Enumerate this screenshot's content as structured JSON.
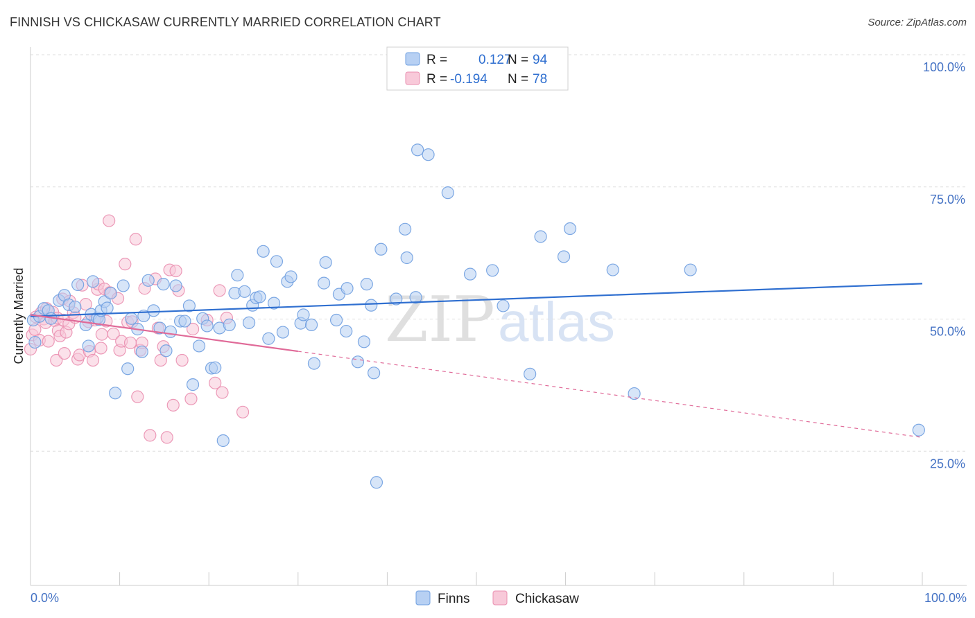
{
  "title": "FINNISH VS CHICKASAW CURRENTLY MARRIED CORRELATION CHART",
  "source": "Source: ZipAtlas.com",
  "watermark": {
    "zip": "ZIP",
    "atlas": "atlas"
  },
  "colors": {
    "finns": "#6f9fe0",
    "finns_fill": "#b7d0f3",
    "finns_line": "#2f6fd0",
    "chickasaw": "#ea8fb0",
    "chickasaw_fill": "#f8c9d9",
    "chickasaw_line": "#e06a98"
  },
  "legend": {
    "finns": {
      "r_label": "R =",
      "r_value": "0.127",
      "n_label": "N =",
      "n_value": "94"
    },
    "chickasaw": {
      "r_label": "R =",
      "r_value": "-0.194",
      "n_label": "N =",
      "n_value": "78"
    }
  },
  "chart_data": {
    "type": "scatter",
    "title": "FINNISH VS CHICKASAW CURRENTLY MARRIED CORRELATION CHART",
    "xlabel": "",
    "ylabel": "Currently Married",
    "xlim": [
      0,
      100
    ],
    "ylim": [
      0,
      100
    ],
    "x_tick_labels": {
      "left": "0.0%",
      "right": "100.0%"
    },
    "y_ticks": [
      {
        "value": 100,
        "label": "100.0%"
      },
      {
        "value": 75,
        "label": "75.0%"
      },
      {
        "value": 50,
        "label": "50.0%"
      },
      {
        "value": 25,
        "label": "25.0%"
      }
    ],
    "series": [
      {
        "name": "Finns",
        "r": 0.127,
        "n": 94,
        "trend": {
          "x": [
            0,
            100
          ],
          "y": [
            50.5,
            56.7
          ]
        },
        "points": [
          [
            0.3,
            49.8
          ],
          [
            0.5,
            45.6
          ],
          [
            1.0,
            50.5
          ],
          [
            1.5,
            52.0
          ],
          [
            2.0,
            51.6
          ],
          [
            2.3,
            50.1
          ],
          [
            3.2,
            53.5
          ],
          [
            3.8,
            54.5
          ],
          [
            4.3,
            52.7
          ],
          [
            5.0,
            52.3
          ],
          [
            5.3,
            56.5
          ],
          [
            6.2,
            48.9
          ],
          [
            6.5,
            44.9
          ],
          [
            6.8,
            50.9
          ],
          [
            7.0,
            57.1
          ],
          [
            7.5,
            50.2
          ],
          [
            7.7,
            49.9
          ],
          [
            7.9,
            51.6
          ],
          [
            8.3,
            53.3
          ],
          [
            8.6,
            52.1
          ],
          [
            9.0,
            54.9
          ],
          [
            9.5,
            36.0
          ],
          [
            10.4,
            56.3
          ],
          [
            10.9,
            40.6
          ],
          [
            11.3,
            50.1
          ],
          [
            12.0,
            48.1
          ],
          [
            12.5,
            43.8
          ],
          [
            12.7,
            50.6
          ],
          [
            13.2,
            57.3
          ],
          [
            13.8,
            51.6
          ],
          [
            14.5,
            48.3
          ],
          [
            14.9,
            56.6
          ],
          [
            15.2,
            44.0
          ],
          [
            15.7,
            47.6
          ],
          [
            16.3,
            56.3
          ],
          [
            16.8,
            49.6
          ],
          [
            17.3,
            49.6
          ],
          [
            17.8,
            52.5
          ],
          [
            18.2,
            37.6
          ],
          [
            18.9,
            44.9
          ],
          [
            19.3,
            50.1
          ],
          [
            19.8,
            48.7
          ],
          [
            20.3,
            40.7
          ],
          [
            20.7,
            40.8
          ],
          [
            21.2,
            48.3
          ],
          [
            21.6,
            27.0
          ],
          [
            22.3,
            48.9
          ],
          [
            22.9,
            54.9
          ],
          [
            23.2,
            58.3
          ],
          [
            24.0,
            55.2
          ],
          [
            24.5,
            49.3
          ],
          [
            24.9,
            52.6
          ],
          [
            25.3,
            54.0
          ],
          [
            25.7,
            54.2
          ],
          [
            26.1,
            62.8
          ],
          [
            26.7,
            46.3
          ],
          [
            27.3,
            53.0
          ],
          [
            27.6,
            60.9
          ],
          [
            28.3,
            47.5
          ],
          [
            28.8,
            57.1
          ],
          [
            29.2,
            58.0
          ],
          [
            30.3,
            49.2
          ],
          [
            30.6,
            50.8
          ],
          [
            31.5,
            48.9
          ],
          [
            31.8,
            41.6
          ],
          [
            32.9,
            56.8
          ],
          [
            33.1,
            60.7
          ],
          [
            34.3,
            49.8
          ],
          [
            34.6,
            54.7
          ],
          [
            35.4,
            47.7
          ],
          [
            35.5,
            55.8
          ],
          [
            36.7,
            41.9
          ],
          [
            37.4,
            45.7
          ],
          [
            37.7,
            56.6
          ],
          [
            38.2,
            52.6
          ],
          [
            38.5,
            39.8
          ],
          [
            38.8,
            19.1
          ],
          [
            39.3,
            63.2
          ],
          [
            41.0,
            53.8
          ],
          [
            42.0,
            67.0
          ],
          [
            42.2,
            61.6
          ],
          [
            43.2,
            54.1
          ],
          [
            43.4,
            82.0
          ],
          [
            44.6,
            81.1
          ],
          [
            46.8,
            73.9
          ],
          [
            49.3,
            58.5
          ],
          [
            51.8,
            59.2
          ],
          [
            53.0,
            52.5
          ],
          [
            56.0,
            39.6
          ],
          [
            57.2,
            65.6
          ],
          [
            59.8,
            61.8
          ],
          [
            60.5,
            67.1
          ],
          [
            65.3,
            59.3
          ],
          [
            67.7,
            35.9
          ],
          [
            74.0,
            59.3
          ],
          [
            99.6,
            29.0
          ]
        ]
      },
      {
        "name": "Chickasaw",
        "r": -0.194,
        "n": 78,
        "trend": {
          "x": [
            0,
            30
          ],
          "y": [
            50.8,
            43.9
          ]
        },
        "trend_extension": {
          "x": [
            30,
            100
          ],
          "y": [
            43.9,
            27.6
          ]
        },
        "points": [
          [
            0.0,
            44.3
          ],
          [
            0.2,
            47.0
          ],
          [
            0.5,
            48.0
          ],
          [
            0.6,
            50.4
          ],
          [
            1.0,
            46.0
          ],
          [
            1.2,
            51.2
          ],
          [
            1.5,
            50.0
          ],
          [
            1.7,
            49.3
          ],
          [
            1.8,
            52.0
          ],
          [
            2.0,
            45.8
          ],
          [
            2.5,
            51.3
          ],
          [
            2.7,
            49.7
          ],
          [
            2.9,
            42.2
          ],
          [
            3.0,
            50.2
          ],
          [
            3.1,
            47.8
          ],
          [
            3.3,
            46.8
          ],
          [
            3.6,
            53.8
          ],
          [
            3.7,
            49.8
          ],
          [
            3.8,
            43.5
          ],
          [
            4.0,
            47.5
          ],
          [
            4.3,
            49.1
          ],
          [
            4.4,
            53.4
          ],
          [
            4.8,
            51.2
          ],
          [
            5.0,
            50.3
          ],
          [
            5.3,
            42.4
          ],
          [
            5.5,
            43.2
          ],
          [
            5.8,
            56.4
          ],
          [
            6.2,
            52.8
          ],
          [
            6.5,
            49.5
          ],
          [
            6.6,
            43.9
          ],
          [
            7.0,
            42.2
          ],
          [
            7.2,
            49.8
          ],
          [
            7.5,
            55.6
          ],
          [
            7.6,
            56.6
          ],
          [
            7.9,
            44.5
          ],
          [
            8.0,
            47.1
          ],
          [
            8.3,
            55.7
          ],
          [
            8.5,
            49.6
          ],
          [
            8.8,
            68.6
          ],
          [
            8.9,
            55.0
          ],
          [
            9.3,
            47.2
          ],
          [
            9.8,
            53.9
          ],
          [
            10.0,
            44.1
          ],
          [
            10.2,
            45.8
          ],
          [
            10.6,
            60.4
          ],
          [
            10.9,
            49.4
          ],
          [
            11.2,
            45.5
          ],
          [
            11.4,
            49.5
          ],
          [
            11.8,
            65.1
          ],
          [
            12.0,
            35.3
          ],
          [
            12.3,
            44.1
          ],
          [
            12.5,
            45.5
          ],
          [
            12.8,
            55.8
          ],
          [
            13.4,
            28.0
          ],
          [
            14.0,
            57.6
          ],
          [
            14.3,
            48.3
          ],
          [
            14.6,
            42.2
          ],
          [
            14.9,
            44.8
          ],
          [
            15.3,
            27.6
          ],
          [
            15.6,
            59.3
          ],
          [
            16.0,
            33.7
          ],
          [
            16.3,
            59.1
          ],
          [
            16.6,
            55.4
          ],
          [
            17.0,
            42.2
          ],
          [
            18.0,
            34.9
          ],
          [
            18.2,
            48.1
          ],
          [
            19.8,
            49.8
          ],
          [
            20.7,
            37.9
          ],
          [
            21.2,
            55.4
          ],
          [
            21.5,
            36.1
          ],
          [
            22.0,
            50.2
          ],
          [
            23.8,
            32.4
          ]
        ]
      }
    ]
  },
  "bottom_legend": [
    {
      "key": "finns",
      "label": "Finns"
    },
    {
      "key": "chickasaw",
      "label": "Chickasaw"
    }
  ]
}
